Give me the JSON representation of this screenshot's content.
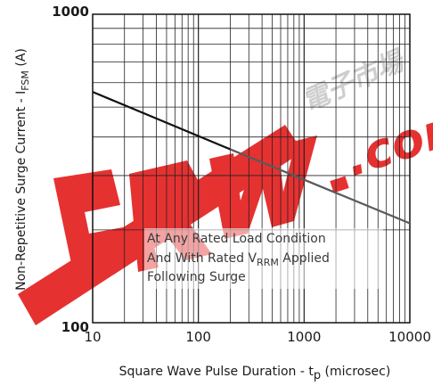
{
  "chart_data": {
    "type": "line",
    "xscale": "log",
    "yscale": "log",
    "xlim": [
      10,
      10000
    ],
    "ylim": [
      100,
      1000
    ],
    "grid": true,
    "x_ticks": [
      "10",
      "100",
      "1000",
      "10000"
    ],
    "y_ticks": [
      "100",
      "1000"
    ],
    "xlabel": {
      "main": "Square Wave Pulse Duration - t",
      "sub": "p",
      "tail": " (microsec)"
    },
    "ylabel": {
      "main": "Non-Repetitive Surge Current - I",
      "sub": "FSM",
      "tail": " (A)"
    },
    "annotation": [
      {
        "text": "At Any Rated Load Condition"
      },
      {
        "text": "And With Rated V",
        "sub": "RRM",
        "tail": "  Applied"
      },
      {
        "text": "Following Surge"
      }
    ],
    "series": [
      {
        "x": [
          10,
          200
        ],
        "y": [
          560,
          365
        ],
        "color": "#111111"
      },
      {
        "x": [
          200,
          10000
        ],
        "y": [
          365,
          210
        ],
        "color": "#5a5a5a"
      }
    ]
  },
  "watermark": {
    "text": ".com",
    "color": "#e01010",
    "chars": "電子市場"
  }
}
